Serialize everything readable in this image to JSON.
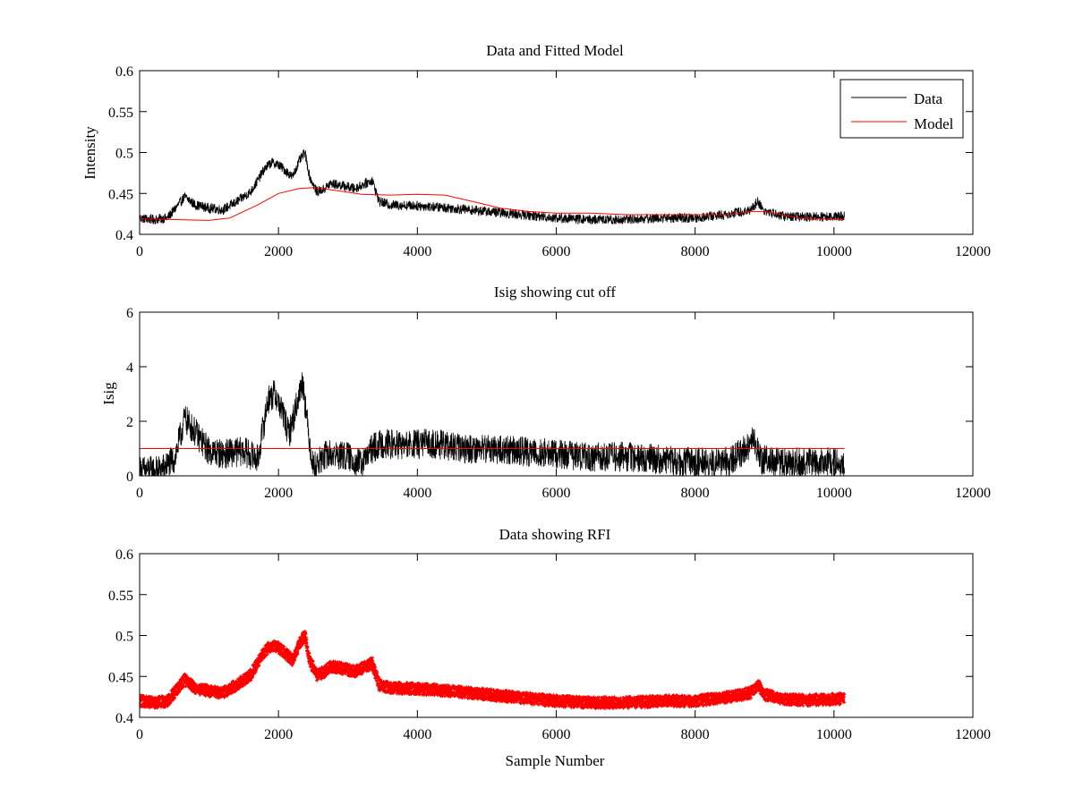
{
  "figure": {
    "background": "#ffffff"
  },
  "chart_data": [
    {
      "type": "line",
      "title": "Data and Fitted Model",
      "xlabel": "",
      "ylabel": "Intensity",
      "xlim": [
        0,
        12000
      ],
      "ylim": [
        0.4,
        0.6
      ],
      "xticks": [
        0,
        2000,
        4000,
        6000,
        8000,
        10000,
        12000
      ],
      "yticks": [
        0.4,
        0.45,
        0.5,
        0.55,
        0.6
      ],
      "xtick_labels": [
        "0",
        "2000",
        "4000",
        "6000",
        "8000",
        "10000",
        "12000"
      ],
      "ytick_labels": [
        "0.4",
        "0.45",
        "0.5",
        "0.55",
        "0.6"
      ],
      "grid": false,
      "legend": {
        "position": "top-right",
        "entries": [
          "Data",
          "Model"
        ]
      },
      "series": [
        {
          "name": "Data",
          "color": "#000000",
          "style": "noisy-line",
          "noise": 0.006,
          "x": [
            0,
            200,
            400,
            500,
            650,
            800,
            1000,
            1200,
            1400,
            1600,
            1800,
            1900,
            2000,
            2100,
            2200,
            2300,
            2380,
            2450,
            2550,
            2650,
            2750,
            2900,
            3100,
            3250,
            3350,
            3450,
            3600,
            4000,
            4500,
            5000,
            5500,
            6000,
            6500,
            7000,
            7500,
            8000,
            8500,
            8800,
            8900,
            9000,
            9300,
            9600,
            10000,
            10150
          ],
          "y": [
            0.42,
            0.418,
            0.42,
            0.43,
            0.446,
            0.436,
            0.432,
            0.43,
            0.44,
            0.452,
            0.48,
            0.488,
            0.485,
            0.478,
            0.47,
            0.49,
            0.5,
            0.47,
            0.452,
            0.455,
            0.462,
            0.46,
            0.456,
            0.462,
            0.466,
            0.44,
            0.436,
            0.435,
            0.432,
            0.428,
            0.424,
            0.42,
            0.418,
            0.418,
            0.42,
            0.42,
            0.425,
            0.43,
            0.44,
            0.428,
            0.422,
            0.421,
            0.422,
            0.423
          ]
        },
        {
          "name": "Model",
          "color": "#ff0000",
          "style": "line",
          "x": [
            0,
            500,
            1000,
            1300,
            1700,
            2000,
            2300,
            2500,
            2800,
            3200,
            3600,
            4000,
            4400,
            4800,
            5200,
            5600,
            6000,
            6500,
            7000,
            7500,
            8000,
            8500,
            8800,
            9000,
            9500,
            10150
          ],
          "y": [
            0.419,
            0.418,
            0.417,
            0.42,
            0.436,
            0.45,
            0.456,
            0.457,
            0.454,
            0.449,
            0.448,
            0.449,
            0.448,
            0.44,
            0.432,
            0.428,
            0.426,
            0.426,
            0.424,
            0.424,
            0.424,
            0.424,
            0.428,
            0.428,
            0.42,
            0.418
          ]
        }
      ]
    },
    {
      "type": "line",
      "title": "Isig showing cut off",
      "xlabel": "",
      "ylabel": "Isig",
      "xlim": [
        0,
        12000
      ],
      "ylim": [
        0,
        6
      ],
      "xticks": [
        0,
        2000,
        4000,
        6000,
        8000,
        10000,
        12000
      ],
      "yticks": [
        0,
        2,
        4,
        6
      ],
      "xtick_labels": [
        "0",
        "2000",
        "4000",
        "6000",
        "8000",
        "10000",
        "12000"
      ],
      "ytick_labels": [
        "0",
        "2",
        "4",
        "6"
      ],
      "grid": false,
      "series": [
        {
          "color": "#000000",
          "style": "noisy-line",
          "noise": 0.55,
          "clip_min": 0,
          "x": [
            0,
            300,
            500,
            650,
            800,
            1000,
            1200,
            1500,
            1700,
            1850,
            1950,
            2050,
            2150,
            2250,
            2350,
            2420,
            2500,
            2700,
            3000,
            3200,
            3350,
            3500,
            3800,
            4200,
            4600,
            5000,
            5500,
            6000,
            6500,
            7000,
            7500,
            8000,
            8500,
            8850,
            8950,
            9200,
            9600,
            10150
          ],
          "y": [
            0.2,
            0.2,
            0.6,
            2.1,
            1.6,
            0.9,
            0.8,
            0.9,
            0.6,
            2.8,
            3.0,
            2.4,
            1.5,
            2.5,
            3.5,
            1.8,
            0.3,
            0.8,
            0.7,
            0.4,
            1.0,
            1.2,
            1.1,
            1.2,
            1.0,
            1.0,
            0.9,
            0.8,
            0.7,
            0.7,
            0.6,
            0.5,
            0.5,
            1.3,
            0.6,
            0.5,
            0.5,
            0.5
          ]
        },
        {
          "color": "#ff0000",
          "style": "line",
          "x": [
            0,
            10150
          ],
          "y": [
            1,
            1
          ]
        }
      ]
    },
    {
      "type": "scatter",
      "title": "Data showing RFI",
      "xlabel": "Sample Number",
      "ylabel": "",
      "xlim": [
        0,
        12000
      ],
      "ylim": [
        0.4,
        0.6
      ],
      "xticks": [
        0,
        2000,
        4000,
        6000,
        8000,
        10000,
        12000
      ],
      "yticks": [
        0.4,
        0.45,
        0.5,
        0.55,
        0.6
      ],
      "xtick_labels": [
        "0",
        "2000",
        "4000",
        "6000",
        "8000",
        "10000",
        "12000"
      ],
      "ytick_labels": [
        "0.4",
        "0.45",
        "0.5",
        "0.55",
        "0.6"
      ],
      "grid": false,
      "series": [
        {
          "color": "#ff0000",
          "style": "noisy-band",
          "noise": 0.007,
          "x": [
            0,
            200,
            400,
            500,
            650,
            800,
            1000,
            1200,
            1400,
            1600,
            1800,
            1900,
            2000,
            2100,
            2200,
            2300,
            2380,
            2450,
            2550,
            2650,
            2750,
            2900,
            3100,
            3250,
            3350,
            3450,
            3600,
            4000,
            4500,
            5000,
            5500,
            6000,
            6500,
            7000,
            7500,
            8000,
            8500,
            8800,
            8900,
            9000,
            9300,
            9600,
            10000,
            10150
          ],
          "y": [
            0.42,
            0.418,
            0.42,
            0.43,
            0.446,
            0.436,
            0.432,
            0.43,
            0.44,
            0.452,
            0.48,
            0.488,
            0.485,
            0.478,
            0.47,
            0.49,
            0.5,
            0.47,
            0.452,
            0.455,
            0.462,
            0.46,
            0.456,
            0.462,
            0.466,
            0.44,
            0.436,
            0.435,
            0.432,
            0.428,
            0.424,
            0.42,
            0.418,
            0.418,
            0.42,
            0.42,
            0.425,
            0.43,
            0.44,
            0.428,
            0.422,
            0.421,
            0.422,
            0.423
          ]
        }
      ]
    }
  ]
}
